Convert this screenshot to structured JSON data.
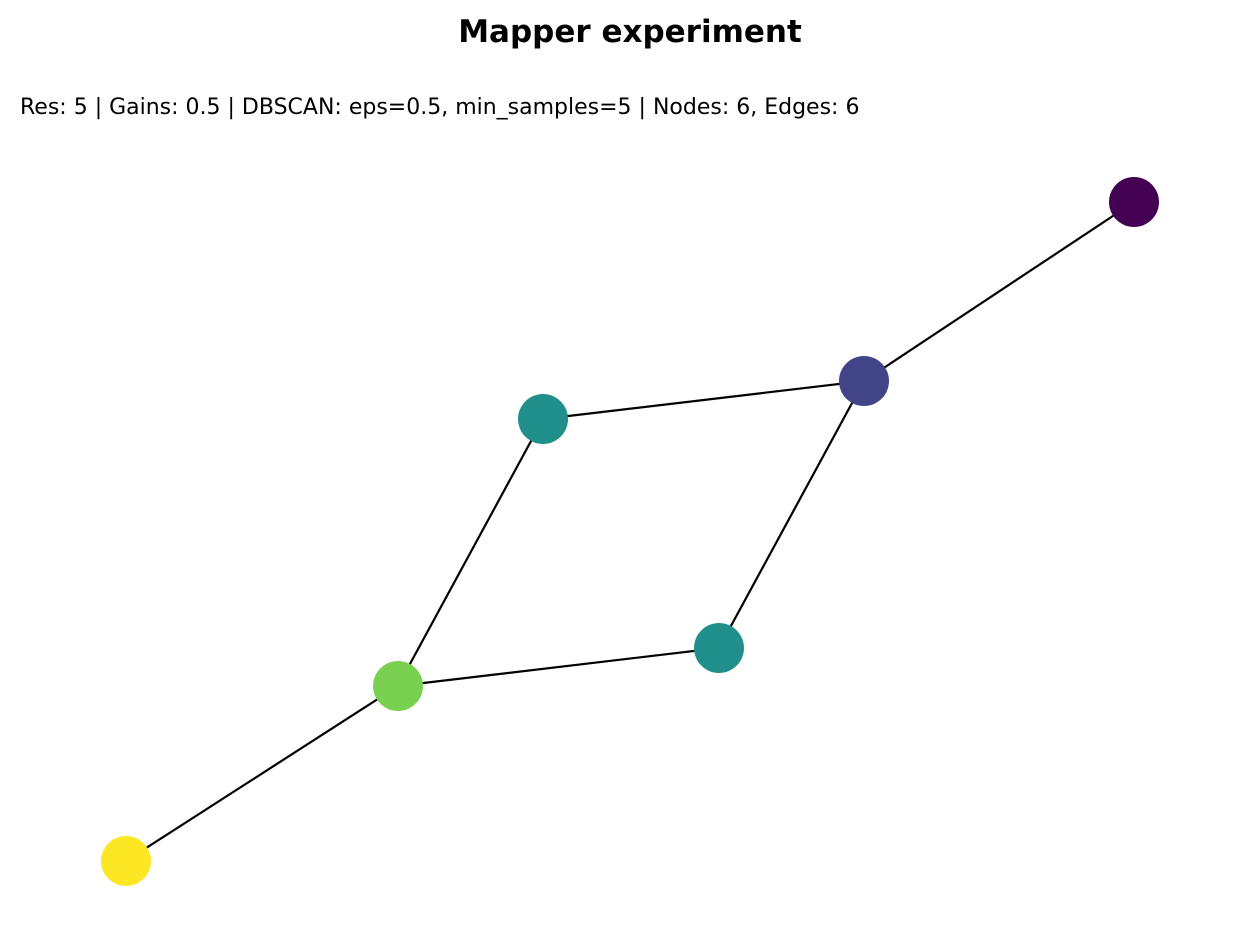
{
  "figure": {
    "title": "Mapper experiment",
    "subtitle": "Res: 5 | Gains: 0.5 | DBSCAN: eps=0.5, min_samples=5 | Nodes: 6, Edges: 6"
  },
  "graph": {
    "nodes": [
      {
        "id": "n0",
        "color": "#440154"
      },
      {
        "id": "n1",
        "color": "#414487"
      },
      {
        "id": "n2",
        "color": "#21908c"
      },
      {
        "id": "n3",
        "color": "#21908c"
      },
      {
        "id": "n4",
        "color": "#7ad151"
      },
      {
        "id": "n5",
        "color": "#fde725"
      }
    ],
    "edges": [
      {
        "source": "n0",
        "target": "n1"
      },
      {
        "source": "n1",
        "target": "n2"
      },
      {
        "source": "n1",
        "target": "n3"
      },
      {
        "source": "n2",
        "target": "n4"
      },
      {
        "source": "n3",
        "target": "n4"
      },
      {
        "source": "n4",
        "target": "n5"
      }
    ]
  }
}
